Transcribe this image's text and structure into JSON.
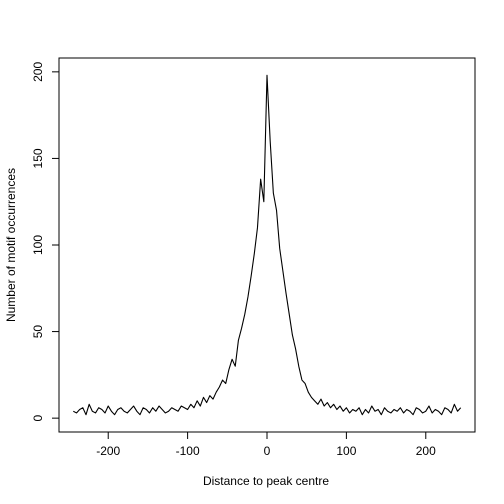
{
  "chart_data": {
    "type": "line",
    "x_label": "Distance to peak centre",
    "y_label": "Number of motif occurrences",
    "color": "#000000",
    "xlim": [
      -262,
      262
    ],
    "ylim": [
      -8,
      208
    ],
    "xticks": [
      -200,
      -100,
      0,
      100,
      200
    ],
    "yticks": [
      0,
      50,
      100,
      150,
      200
    ],
    "x": [
      -244,
      -240,
      -236,
      -232,
      -228,
      -224,
      -220,
      -216,
      -212,
      -208,
      -204,
      -200,
      -196,
      -192,
      -188,
      -184,
      -180,
      -176,
      -172,
      -168,
      -164,
      -160,
      -156,
      -152,
      -148,
      -144,
      -140,
      -136,
      -132,
      -128,
      -124,
      -120,
      -116,
      -112,
      -108,
      -104,
      -100,
      -96,
      -92,
      -88,
      -84,
      -80,
      -76,
      -72,
      -68,
      -64,
      -60,
      -56,
      -52,
      -48,
      -44,
      -40,
      -36,
      -32,
      -28,
      -24,
      -20,
      -16,
      -12,
      -8,
      -4,
      0,
      4,
      8,
      12,
      16,
      20,
      24,
      28,
      32,
      36,
      40,
      44,
      48,
      52,
      56,
      60,
      64,
      68,
      72,
      76,
      80,
      84,
      88,
      92,
      96,
      100,
      104,
      108,
      112,
      116,
      120,
      124,
      128,
      132,
      136,
      140,
      144,
      148,
      152,
      156,
      160,
      164,
      168,
      172,
      176,
      180,
      184,
      188,
      192,
      196,
      200,
      204,
      208,
      212,
      216,
      220,
      224,
      228,
      232,
      236,
      240,
      244
    ],
    "values": [
      4,
      3,
      5,
      6,
      2,
      8,
      4,
      3,
      6,
      5,
      3,
      7,
      4,
      2,
      5,
      6,
      4,
      3,
      5,
      7,
      4,
      2,
      6,
      5,
      3,
      6,
      4,
      7,
      5,
      3,
      4,
      6,
      5,
      4,
      7,
      6,
      5,
      8,
      6,
      10,
      7,
      12,
      9,
      13,
      11,
      15,
      18,
      22,
      20,
      28,
      34,
      30,
      45,
      52,
      60,
      70,
      82,
      95,
      110,
      138,
      125,
      198,
      160,
      130,
      120,
      98,
      85,
      72,
      60,
      48,
      40,
      30,
      22,
      20,
      15,
      12,
      10,
      8,
      11,
      7,
      9,
      6,
      8,
      5,
      7,
      4,
      6,
      3,
      5,
      4,
      6,
      2,
      5,
      3,
      7,
      4,
      5,
      2,
      6,
      4,
      3,
      5,
      4,
      6,
      3,
      5,
      4,
      2,
      6,
      5,
      3,
      4,
      7,
      3,
      5,
      4,
      2,
      6,
      5,
      3,
      8,
      4,
      6
    ]
  }
}
